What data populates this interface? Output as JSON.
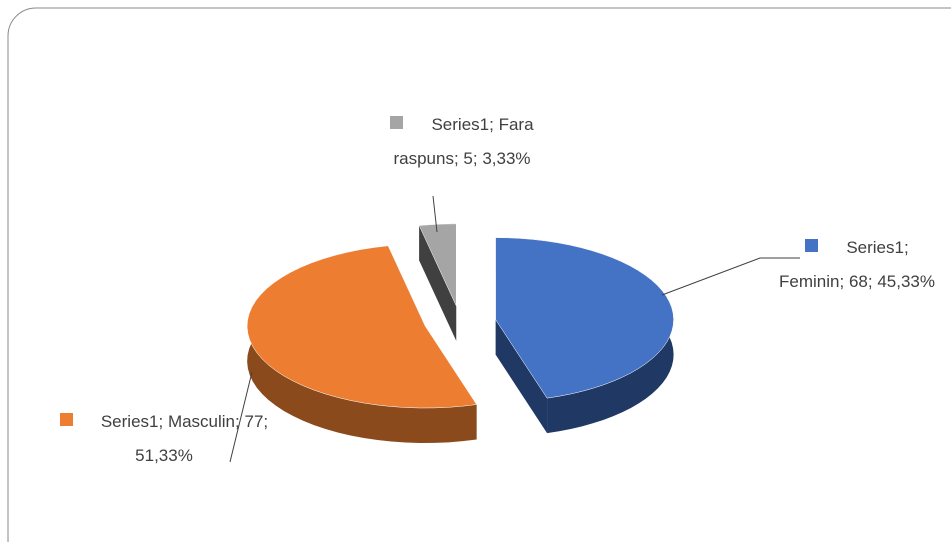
{
  "chart_data": {
    "type": "pie",
    "series_name": "Series1",
    "label_separator": "; ",
    "categories": [
      "Feminin",
      "Masculin",
      "Fara raspuns"
    ],
    "values": [
      68,
      77,
      5
    ],
    "percentages": [
      45.33,
      51.33,
      3.33
    ],
    "percentage_labels": [
      "45,33%",
      "51,33%",
      "3,33%"
    ],
    "colors": [
      "#4472c4",
      "#ed7d31",
      "#a5a5a5"
    ],
    "side_colors": [
      "#203864",
      "#8a4a1c",
      "#404040"
    ]
  }
}
